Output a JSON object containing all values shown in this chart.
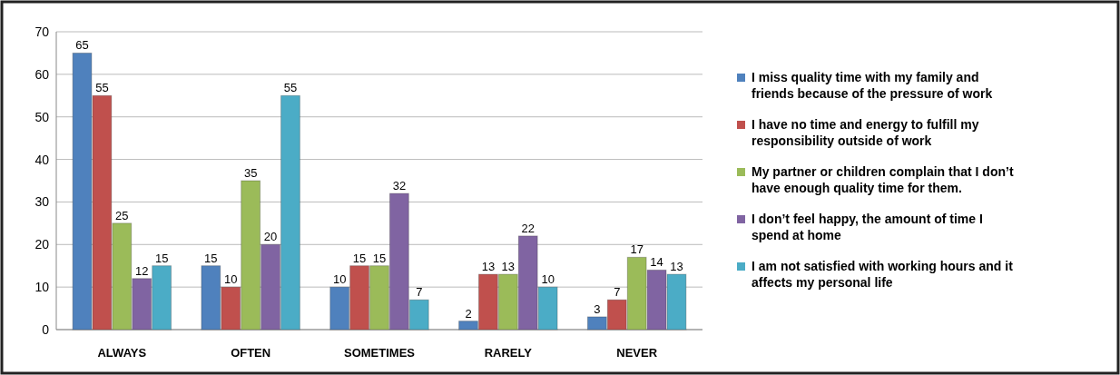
{
  "chart_data": {
    "type": "bar",
    "categories": [
      "ALWAYS",
      "OFTEN",
      "SOMETIMES",
      "RARELY",
      "NEVER"
    ],
    "series": [
      {
        "name": "I miss quality time with my family and friends because of the pressure of work",
        "color": "#4f81bd",
        "values": [
          65,
          15,
          10,
          2,
          3
        ]
      },
      {
        "name": "I have no time and energy to fulfill my responsibility outside of work",
        "color": "#c0504d",
        "values": [
          55,
          10,
          15,
          13,
          7
        ]
      },
      {
        "name": "My partner or children complain that I don’t have enough quality time for them.",
        "color": "#9bbb59",
        "values": [
          25,
          35,
          15,
          13,
          17
        ]
      },
      {
        "name": "I don’t feel happy, the amount of time I spend at home",
        "color": "#8064a2",
        "values": [
          12,
          20,
          32,
          22,
          14
        ]
      },
      {
        "name": "I am not satisfied with working hours and it affects my personal life",
        "color": "#4bacc6",
        "values": [
          15,
          55,
          7,
          10,
          13
        ]
      }
    ],
    "ylim": [
      0,
      70
    ],
    "yticks": [
      0,
      10,
      20,
      30,
      40,
      50,
      60,
      70
    ],
    "grid": "y",
    "legend": "right",
    "data_labels": true
  }
}
